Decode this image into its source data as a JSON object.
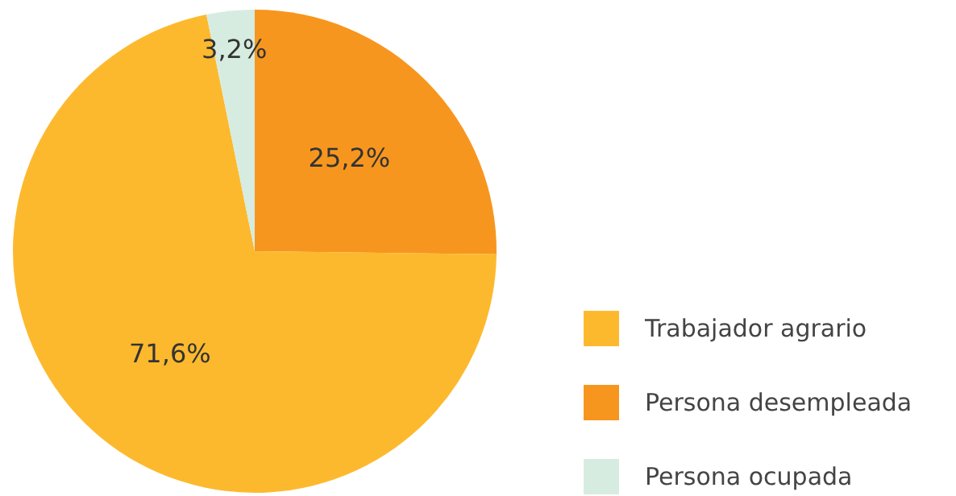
{
  "chart_data": {
    "type": "pie",
    "categories": [
      "Trabajador agrario",
      "Persona desempleada",
      "Persona ocupada"
    ],
    "values": [
      71.6,
      25.2,
      3.2
    ],
    "colors": [
      "#fdb92e",
      "#f7961e",
      "#d6ece0"
    ],
    "value_labels": [
      "71,6%",
      "25,2%",
      "3,2%"
    ],
    "legend": "right"
  }
}
